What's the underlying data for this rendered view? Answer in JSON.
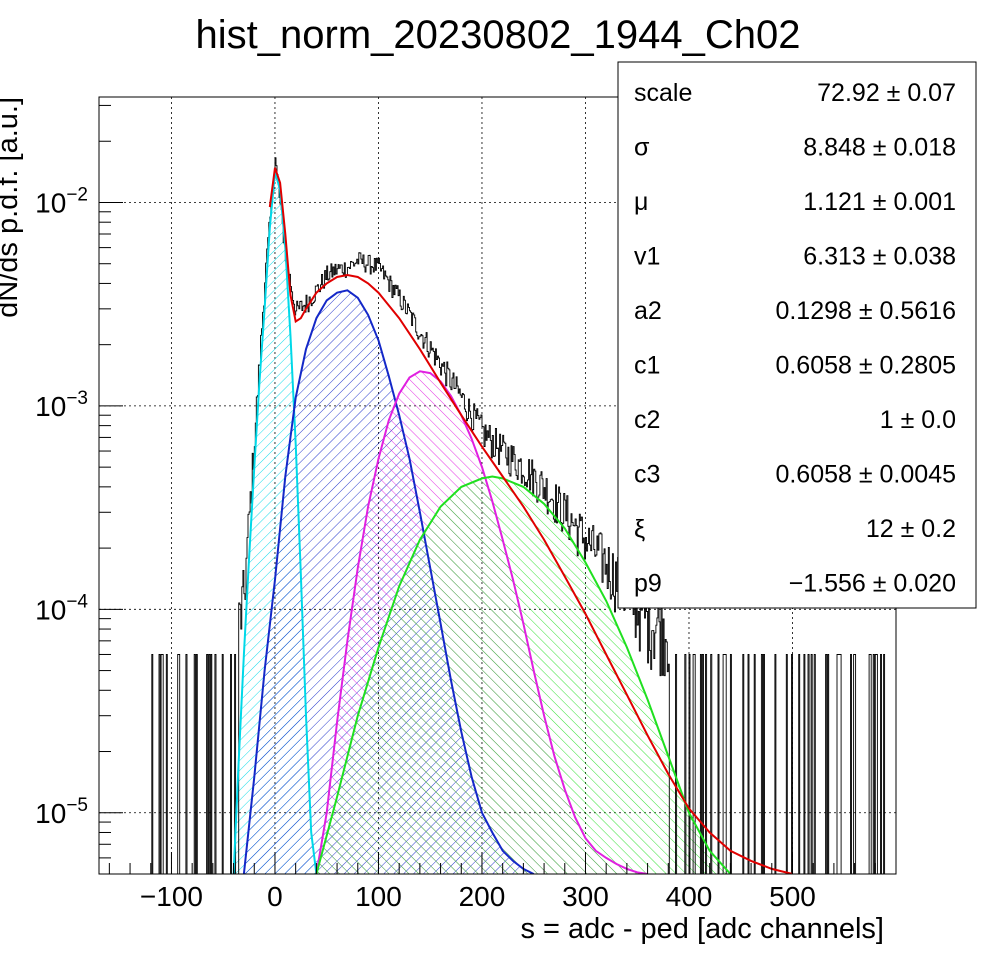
{
  "chart_data": {
    "type": "line",
    "title": "hist_norm_20230802_1944_Ch02",
    "xlabel": "s = adc - ped [adc channels]",
    "ylabel": "dN/ds p.d.f. [a.u.]",
    "xlim": [
      -170,
      600
    ],
    "ylim": [
      5e-06,
      0.033
    ],
    "yscale": "log",
    "grid": true,
    "x_ticks": [
      -100,
      0,
      100,
      200,
      300,
      400,
      500
    ],
    "x_tick_labels": [
      "−100",
      "0",
      "100",
      "200",
      "300",
      "400",
      "500"
    ],
    "y_ticks": [
      1e-05,
      0.0001,
      0.001,
      0.01
    ],
    "y_tick_labels": [
      {
        "base": "10",
        "exp": "−5"
      },
      {
        "base": "10",
        "exp": "−4"
      },
      {
        "base": "10",
        "exp": "−3"
      },
      {
        "base": "10",
        "exp": "−2"
      }
    ],
    "data_histogram": {
      "x": [
        -120,
        -100,
        -80,
        -60,
        -50,
        -40,
        -30,
        -20,
        -10,
        0,
        10,
        20,
        30,
        40,
        50,
        60,
        70,
        80,
        90,
        100,
        120,
        140,
        160,
        180,
        200,
        220,
        240,
        260,
        280,
        300,
        320,
        340,
        360,
        380,
        400,
        420,
        440,
        460,
        480,
        500,
        520,
        540,
        560,
        580
      ],
      "y": [
        6e-05,
        6e-05,
        6e-05,
        6e-05,
        6e-05,
        6e-05,
        0.00012,
        0.0007,
        0.0042,
        0.0165,
        0.0055,
        0.0029,
        0.0032,
        0.0037,
        0.0044,
        0.0047,
        0.0048,
        0.0052,
        0.005,
        0.0048,
        0.0034,
        0.0023,
        0.0016,
        0.0011,
        0.00075,
        0.0006,
        0.0005,
        0.0004,
        0.0003,
        0.00022,
        0.00017,
        0.00012,
        9e-05,
        8e-05,
        7e-05,
        6e-05,
        6e-05,
        6e-05,
        6e-05,
        6e-05,
        6e-05,
        6e-05,
        6e-05,
        6e-05
      ]
    },
    "series": [
      {
        "color": "#00d8e8",
        "fill": "hatch",
        "x": [
          -40,
          -35,
          -30,
          -25,
          -20,
          -15,
          -10,
          -5,
          0,
          5,
          10,
          15,
          20,
          25,
          30,
          35,
          40
        ],
        "y": [
          5e-06,
          1.8e-05,
          6e-05,
          0.00018,
          0.0005,
          0.0013,
          0.003,
          0.0075,
          0.0142,
          0.0115,
          0.006,
          0.0022,
          0.00065,
          0.00015,
          3e-05,
          8e-06,
          5e-06
        ]
      },
      {
        "color": "#1428c8",
        "fill": "hatch",
        "x": [
          -30,
          -20,
          -10,
          0,
          10,
          20,
          30,
          40,
          50,
          60,
          70,
          80,
          90,
          100,
          110,
          120,
          130,
          140,
          150,
          160,
          170,
          180,
          190,
          200,
          210,
          220,
          230,
          240,
          250
        ],
        "y": [
          5e-06,
          1.5e-05,
          5e-05,
          0.00014,
          0.00045,
          0.0011,
          0.0019,
          0.0027,
          0.0033,
          0.0036,
          0.0037,
          0.0034,
          0.0028,
          0.0021,
          0.0014,
          0.0009,
          0.00055,
          0.0003,
          0.00016,
          8.5e-05,
          4.5e-05,
          2.5e-05,
          1.5e-05,
          1e-05,
          8e-06,
          6.5e-06,
          5.8e-06,
          5.3e-06,
          5e-06
        ]
      },
      {
        "color": "#e020e0",
        "fill": "hatch",
        "x": [
          40,
          50,
          60,
          70,
          80,
          90,
          100,
          110,
          120,
          130,
          140,
          150,
          160,
          170,
          180,
          190,
          200,
          210,
          220,
          230,
          240,
          250,
          260,
          270,
          280,
          290,
          300,
          310,
          320,
          330,
          340,
          350,
          360
        ],
        "y": [
          5e-06,
          1e-05,
          2.8e-05,
          7e-05,
          0.00016,
          0.00032,
          0.00055,
          0.00085,
          0.00115,
          0.00138,
          0.00148,
          0.00145,
          0.00132,
          0.00112,
          0.0009,
          0.00069,
          0.0005,
          0.00034,
          0.00022,
          0.00014,
          8.5e-05,
          5e-05,
          3e-05,
          1.9e-05,
          1.3e-05,
          9.5e-06,
          7.5e-06,
          6.5e-06,
          6e-06,
          5.6e-06,
          5.3e-06,
          5.1e-06,
          5e-06
        ]
      },
      {
        "color": "#20e020",
        "fill": "hatch",
        "x": [
          40,
          60,
          80,
          100,
          120,
          140,
          160,
          180,
          200,
          210,
          220,
          240,
          260,
          280,
          300,
          320,
          340,
          360,
          380,
          400,
          420,
          440
        ],
        "y": [
          5e-06,
          1.2e-05,
          3e-05,
          6.5e-05,
          0.00013,
          0.00022,
          0.00032,
          0.0004,
          0.00044,
          0.00045,
          0.00044,
          0.0004,
          0.00033,
          0.00025,
          0.00017,
          0.00011,
          6.5e-05,
          3.6e-05,
          1.9e-05,
          1e-05,
          6.5e-06,
          5e-06
        ]
      },
      {
        "color": "#e00000",
        "fill": "none",
        "x": [
          -5,
          0,
          5,
          10,
          15,
          20,
          25,
          30,
          40,
          50,
          60,
          70,
          80,
          90,
          100,
          120,
          140,
          160,
          180,
          200,
          220,
          240,
          260,
          280,
          300,
          320,
          340,
          360,
          380,
          400,
          420,
          440,
          460,
          480,
          500
        ],
        "y": [
          0.0095,
          0.0148,
          0.0125,
          0.007,
          0.0035,
          0.0026,
          0.0027,
          0.003,
          0.0036,
          0.004,
          0.0043,
          0.0044,
          0.0043,
          0.004,
          0.0036,
          0.0027,
          0.0019,
          0.0013,
          0.0009,
          0.00063,
          0.00045,
          0.00032,
          0.00022,
          0.000145,
          9.5e-05,
          6e-05,
          3.8e-05,
          2.4e-05,
          1.55e-05,
          1.05e-05,
          8e-06,
          6.5e-06,
          5.8e-06,
          5.3e-06,
          5e-06
        ]
      }
    ],
    "stats_box": [
      {
        "label": "scale",
        "value": "72.92",
        "error": "0.07"
      },
      {
        "label": "σ",
        "value": "8.848",
        "error": "0.018"
      },
      {
        "label": "μ",
        "value": "1.121",
        "error": "0.001"
      },
      {
        "label": "v1",
        "value": "6.313",
        "error": "0.038"
      },
      {
        "label": "a2",
        "value": "0.1298",
        "error": "0.5616"
      },
      {
        "label": "c1",
        "value": "0.6058",
        "error": "0.2805"
      },
      {
        "label": "c2",
        "value": "1",
        "error": "0.0"
      },
      {
        "label": "c3",
        "value": "0.6058",
        "error": "0.0045"
      },
      {
        "label": "ξ",
        "value": "12",
        "error": "0.2"
      },
      {
        "label": "p9",
        "value": "−1.556",
        "error": "0.020"
      }
    ],
    "pm_symbol": "±"
  }
}
